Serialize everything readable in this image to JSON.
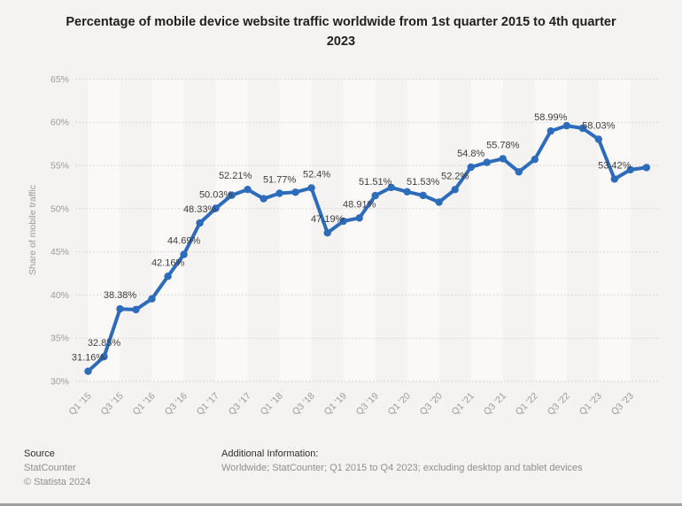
{
  "header": {
    "title": "Percentage of mobile device website traffic worldwide from 1st quarter 2015 to 4th quarter 2023"
  },
  "chart_data": {
    "type": "line",
    "title": "Percentage of mobile device website traffic worldwide from 1st quarter 2015 to 4th quarter 2023",
    "xlabel": "",
    "ylabel": "Share of mobile traffic",
    "ylim": [
      30,
      65
    ],
    "y_tick_labels": [
      "30%",
      "35%",
      "40%",
      "45%",
      "50%",
      "55%",
      "60%",
      "65%"
    ],
    "x_tick_labels": [
      "Q1 '15",
      "Q3 '15",
      "Q1 '16",
      "Q3 '16",
      "Q1 '17",
      "Q3 '17",
      "Q1 '18",
      "Q3 '18",
      "Q1 '19",
      "Q3 '19",
      "Q1 '20",
      "Q3 '20",
      "Q1 '21",
      "Q3 '21",
      "Q1 '22",
      "Q3 '22",
      "Q1 '23",
      "Q3 '23"
    ],
    "grid": "horizontal-dotted",
    "legend": "none",
    "series": [
      {
        "name": "Share of mobile traffic",
        "color": "#2d6bbb",
        "points": [
          {
            "quarter": "Q1 '15",
            "value": 31.16,
            "label": "31.16%"
          },
          {
            "quarter": "Q2 '15",
            "value": 32.85,
            "label": "32.85%"
          },
          {
            "quarter": "Q3 '15",
            "value": 38.38,
            "label": "38.38%"
          },
          {
            "quarter": "Q4 '15",
            "value": 38.3,
            "label": null
          },
          {
            "quarter": "Q1 '16",
            "value": 39.55,
            "label": null
          },
          {
            "quarter": "Q2 '16",
            "value": 42.16,
            "label": "42.16%"
          },
          {
            "quarter": "Q3 '16",
            "value": 44.69,
            "label": "44.69%"
          },
          {
            "quarter": "Q4 '16",
            "value": 48.33,
            "label": "48.33%"
          },
          {
            "quarter": "Q1 '17",
            "value": 50.03,
            "label": "50.03%"
          },
          {
            "quarter": "Q2 '17",
            "value": 51.55,
            "label": null
          },
          {
            "quarter": "Q3 '17",
            "value": 52.21,
            "label": "52.21%",
            "label_dx": -14
          },
          {
            "quarter": "Q4 '17",
            "value": 51.15,
            "label": null
          },
          {
            "quarter": "Q1 '18",
            "value": 51.77,
            "label": "51.77%"
          },
          {
            "quarter": "Q2 '18",
            "value": 51.9,
            "label": null
          },
          {
            "quarter": "Q3 '18",
            "value": 52.4,
            "label": "52.4%",
            "label_dx": 6
          },
          {
            "quarter": "Q4 '18",
            "value": 47.19,
            "label": "47.19%"
          },
          {
            "quarter": "Q1 '19",
            "value": 48.55,
            "label": null
          },
          {
            "quarter": "Q2 '19",
            "value": 48.91,
            "label": "48.91%"
          },
          {
            "quarter": "Q3 '19",
            "value": 51.51,
            "label": "51.51%"
          },
          {
            "quarter": "Q4 '19",
            "value": 52.45,
            "label": null
          },
          {
            "quarter": "Q1 '20",
            "value": 51.95,
            "label": null
          },
          {
            "quarter": "Q2 '20",
            "value": 51.53,
            "label": "51.53%"
          },
          {
            "quarter": "Q3 '20",
            "value": 50.75,
            "label": null
          },
          {
            "quarter": "Q4 '20",
            "value": 52.2,
            "label": "52.2%"
          },
          {
            "quarter": "Q1 '21",
            "value": 54.8,
            "label": "54.8%"
          },
          {
            "quarter": "Q2 '21",
            "value": 55.35,
            "label": null
          },
          {
            "quarter": "Q3 '21",
            "value": 55.78,
            "label": "55.78%"
          },
          {
            "quarter": "Q4 '21",
            "value": 54.25,
            "label": null
          },
          {
            "quarter": "Q1 '22",
            "value": 55.7,
            "label": null
          },
          {
            "quarter": "Q2 '22",
            "value": 58.99,
            "label": "58.99%"
          },
          {
            "quarter": "Q3 '22",
            "value": 59.6,
            "label": null
          },
          {
            "quarter": "Q4 '22",
            "value": 59.3,
            "label": null
          },
          {
            "quarter": "Q1 '23",
            "value": 58.03,
            "label": "58.03%"
          },
          {
            "quarter": "Q2 '23",
            "value": 53.42,
            "label": "53.42%"
          },
          {
            "quarter": "Q3 '23",
            "value": 54.5,
            "label": null
          },
          {
            "quarter": "Q4 '23",
            "value": 54.75,
            "label": null
          }
        ]
      }
    ]
  },
  "footer": {
    "source_heading": "Source",
    "source_name": "StatCounter",
    "copyright": "© Statista 2024",
    "info_heading": "Additional Information:",
    "info_text": "Worldwide; StatCounter; Q1 2015 to Q4 2023; excluding desktop and tablet devices"
  },
  "colors": {
    "background": "#f4f3f1",
    "line": "#2d6bbb",
    "grid": "#cfcdc9",
    "axis_text": "#9b9b9b",
    "data_label_text": "#3d3d3d",
    "title_text": "#202020",
    "band_highlight": "#ffffff",
    "bottom_divider": "#a0a09e"
  }
}
